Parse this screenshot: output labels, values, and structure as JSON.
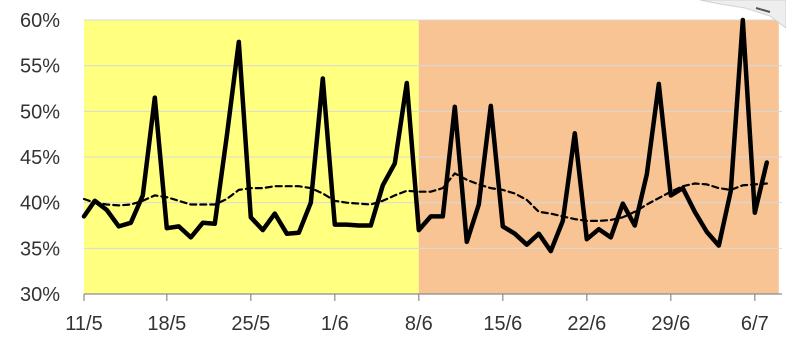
{
  "chart_data": {
    "type": "line",
    "x_type": "date",
    "x_start": "2020-05-10",
    "x_end": "2020-07-08",
    "ylim": [
      0.3,
      0.6
    ],
    "y_ticks": [
      0.3,
      0.35,
      0.4,
      0.45,
      0.5,
      0.55,
      0.6
    ],
    "y_tick_labels": [
      "30%",
      "35%",
      "40%",
      "45%",
      "50%",
      "55%",
      "60%"
    ],
    "x_ticks": [
      {
        "date": "2020-05-11",
        "label": "11/5"
      },
      {
        "date": "2020-05-18",
        "label": "18/5"
      },
      {
        "date": "2020-05-25",
        "label": "25/5"
      },
      {
        "date": "2020-06-01",
        "label": "1/6"
      },
      {
        "date": "2020-06-08",
        "label": "8/6"
      },
      {
        "date": "2020-06-15",
        "label": "15/6"
      },
      {
        "date": "2020-06-22",
        "label": "22/6"
      },
      {
        "date": "2020-06-29",
        "label": "29/6"
      },
      {
        "date": "2020-07-06",
        "label": "6/7"
      }
    ],
    "regions": [
      {
        "from": "2020-05-10",
        "to": "2020-06-08",
        "color": "#FFFF80"
      },
      {
        "from": "2020-06-08",
        "to": "2020-07-08",
        "color": "#F8C494"
      }
    ],
    "series": [
      {
        "style": "solid",
        "color": "#000000",
        "points": [
          [
            "2020-05-11",
            0.385
          ],
          [
            "2020-05-12",
            0.402
          ],
          [
            "2020-05-13",
            0.392
          ],
          [
            "2020-05-14",
            0.374
          ],
          [
            "2020-05-15",
            0.378
          ],
          [
            "2020-05-16",
            0.408
          ],
          [
            "2020-05-17",
            0.515
          ],
          [
            "2020-05-18",
            0.372
          ],
          [
            "2020-05-19",
            0.374
          ],
          [
            "2020-05-20",
            0.362
          ],
          [
            "2020-05-21",
            0.378
          ],
          [
            "2020-05-22",
            0.377
          ],
          [
            "2020-05-23",
            0.473
          ],
          [
            "2020-05-24",
            0.576
          ],
          [
            "2020-05-25",
            0.384
          ],
          [
            "2020-05-26",
            0.37
          ],
          [
            "2020-05-27",
            0.388
          ],
          [
            "2020-05-28",
            0.366
          ],
          [
            "2020-05-29",
            0.367
          ],
          [
            "2020-05-30",
            0.4
          ],
          [
            "2020-05-31",
            0.536
          ],
          [
            "2020-06-01",
            0.376
          ],
          [
            "2020-06-02",
            0.376
          ],
          [
            "2020-06-03",
            0.375
          ],
          [
            "2020-06-04",
            0.375
          ],
          [
            "2020-06-05",
            0.419
          ],
          [
            "2020-06-06",
            0.443
          ],
          [
            "2020-06-07",
            0.531
          ],
          [
            "2020-06-08",
            0.37
          ],
          [
            "2020-06-09",
            0.385
          ],
          [
            "2020-06-10",
            0.385
          ],
          [
            "2020-06-11",
            0.505
          ],
          [
            "2020-06-12",
            0.357
          ],
          [
            "2020-06-13",
            0.398
          ],
          [
            "2020-06-14",
            0.506
          ],
          [
            "2020-06-15",
            0.374
          ],
          [
            "2020-06-16",
            0.366
          ],
          [
            "2020-06-17",
            0.354
          ],
          [
            "2020-06-18",
            0.366
          ],
          [
            "2020-06-19",
            0.347
          ],
          [
            "2020-06-20",
            0.38
          ],
          [
            "2020-06-21",
            0.476
          ],
          [
            "2020-06-22",
            0.36
          ],
          [
            "2020-06-23",
            0.371
          ],
          [
            "2020-06-24",
            0.362
          ],
          [
            "2020-06-25",
            0.399
          ],
          [
            "2020-06-26",
            0.375
          ],
          [
            "2020-06-27",
            0.431
          ],
          [
            "2020-06-28",
            0.53
          ],
          [
            "2020-06-29",
            0.408
          ],
          [
            "2020-06-30",
            0.416
          ],
          [
            "2020-07-01",
            0.39
          ],
          [
            "2020-07-02",
            0.368
          ],
          [
            "2020-07-03",
            0.353
          ],
          [
            "2020-07-04",
            0.413
          ],
          [
            "2020-07-05",
            0.6
          ],
          [
            "2020-07-06",
            0.389
          ],
          [
            "2020-07-07",
            0.444
          ]
        ]
      },
      {
        "style": "dashed",
        "color": "#000000",
        "points": [
          [
            "2020-05-11",
            0.404
          ],
          [
            "2020-05-12",
            0.4
          ],
          [
            "2020-05-13",
            0.398
          ],
          [
            "2020-05-14",
            0.397
          ],
          [
            "2020-05-15",
            0.398
          ],
          [
            "2020-05-16",
            0.402
          ],
          [
            "2020-05-17",
            0.408
          ],
          [
            "2020-05-18",
            0.406
          ],
          [
            "2020-05-19",
            0.402
          ],
          [
            "2020-05-20",
            0.398
          ],
          [
            "2020-05-21",
            0.398
          ],
          [
            "2020-05-22",
            0.398
          ],
          [
            "2020-05-23",
            0.404
          ],
          [
            "2020-05-24",
            0.414
          ],
          [
            "2020-05-25",
            0.416
          ],
          [
            "2020-05-26",
            0.416
          ],
          [
            "2020-05-27",
            0.418
          ],
          [
            "2020-05-28",
            0.418
          ],
          [
            "2020-05-29",
            0.418
          ],
          [
            "2020-05-30",
            0.416
          ],
          [
            "2020-05-31",
            0.41
          ],
          [
            "2020-06-01",
            0.402
          ],
          [
            "2020-06-02",
            0.4
          ],
          [
            "2020-06-03",
            0.399
          ],
          [
            "2020-06-04",
            0.398
          ],
          [
            "2020-06-05",
            0.402
          ],
          [
            "2020-06-06",
            0.408
          ],
          [
            "2020-06-07",
            0.413
          ],
          [
            "2020-06-08",
            0.412
          ],
          [
            "2020-06-09",
            0.412
          ],
          [
            "2020-06-10",
            0.416
          ],
          [
            "2020-06-11",
            0.432
          ],
          [
            "2020-06-12",
            0.425
          ],
          [
            "2020-06-13",
            0.42
          ],
          [
            "2020-06-14",
            0.416
          ],
          [
            "2020-06-15",
            0.414
          ],
          [
            "2020-06-16",
            0.41
          ],
          [
            "2020-06-17",
            0.403
          ],
          [
            "2020-06-18",
            0.39
          ],
          [
            "2020-06-19",
            0.388
          ],
          [
            "2020-06-20",
            0.385
          ],
          [
            "2020-06-21",
            0.382
          ],
          [
            "2020-06-22",
            0.38
          ],
          [
            "2020-06-23",
            0.38
          ],
          [
            "2020-06-24",
            0.381
          ],
          [
            "2020-06-25",
            0.384
          ],
          [
            "2020-06-26",
            0.39
          ],
          [
            "2020-06-27",
            0.398
          ],
          [
            "2020-06-28",
            0.405
          ],
          [
            "2020-06-29",
            0.412
          ],
          [
            "2020-06-30",
            0.418
          ],
          [
            "2020-07-01",
            0.421
          ],
          [
            "2020-07-02",
            0.42
          ],
          [
            "2020-07-03",
            0.416
          ],
          [
            "2020-07-04",
            0.414
          ],
          [
            "2020-07-05",
            0.419
          ],
          [
            "2020-07-06",
            0.42
          ],
          [
            "2020-07-07",
            0.421
          ]
        ]
      }
    ]
  }
}
